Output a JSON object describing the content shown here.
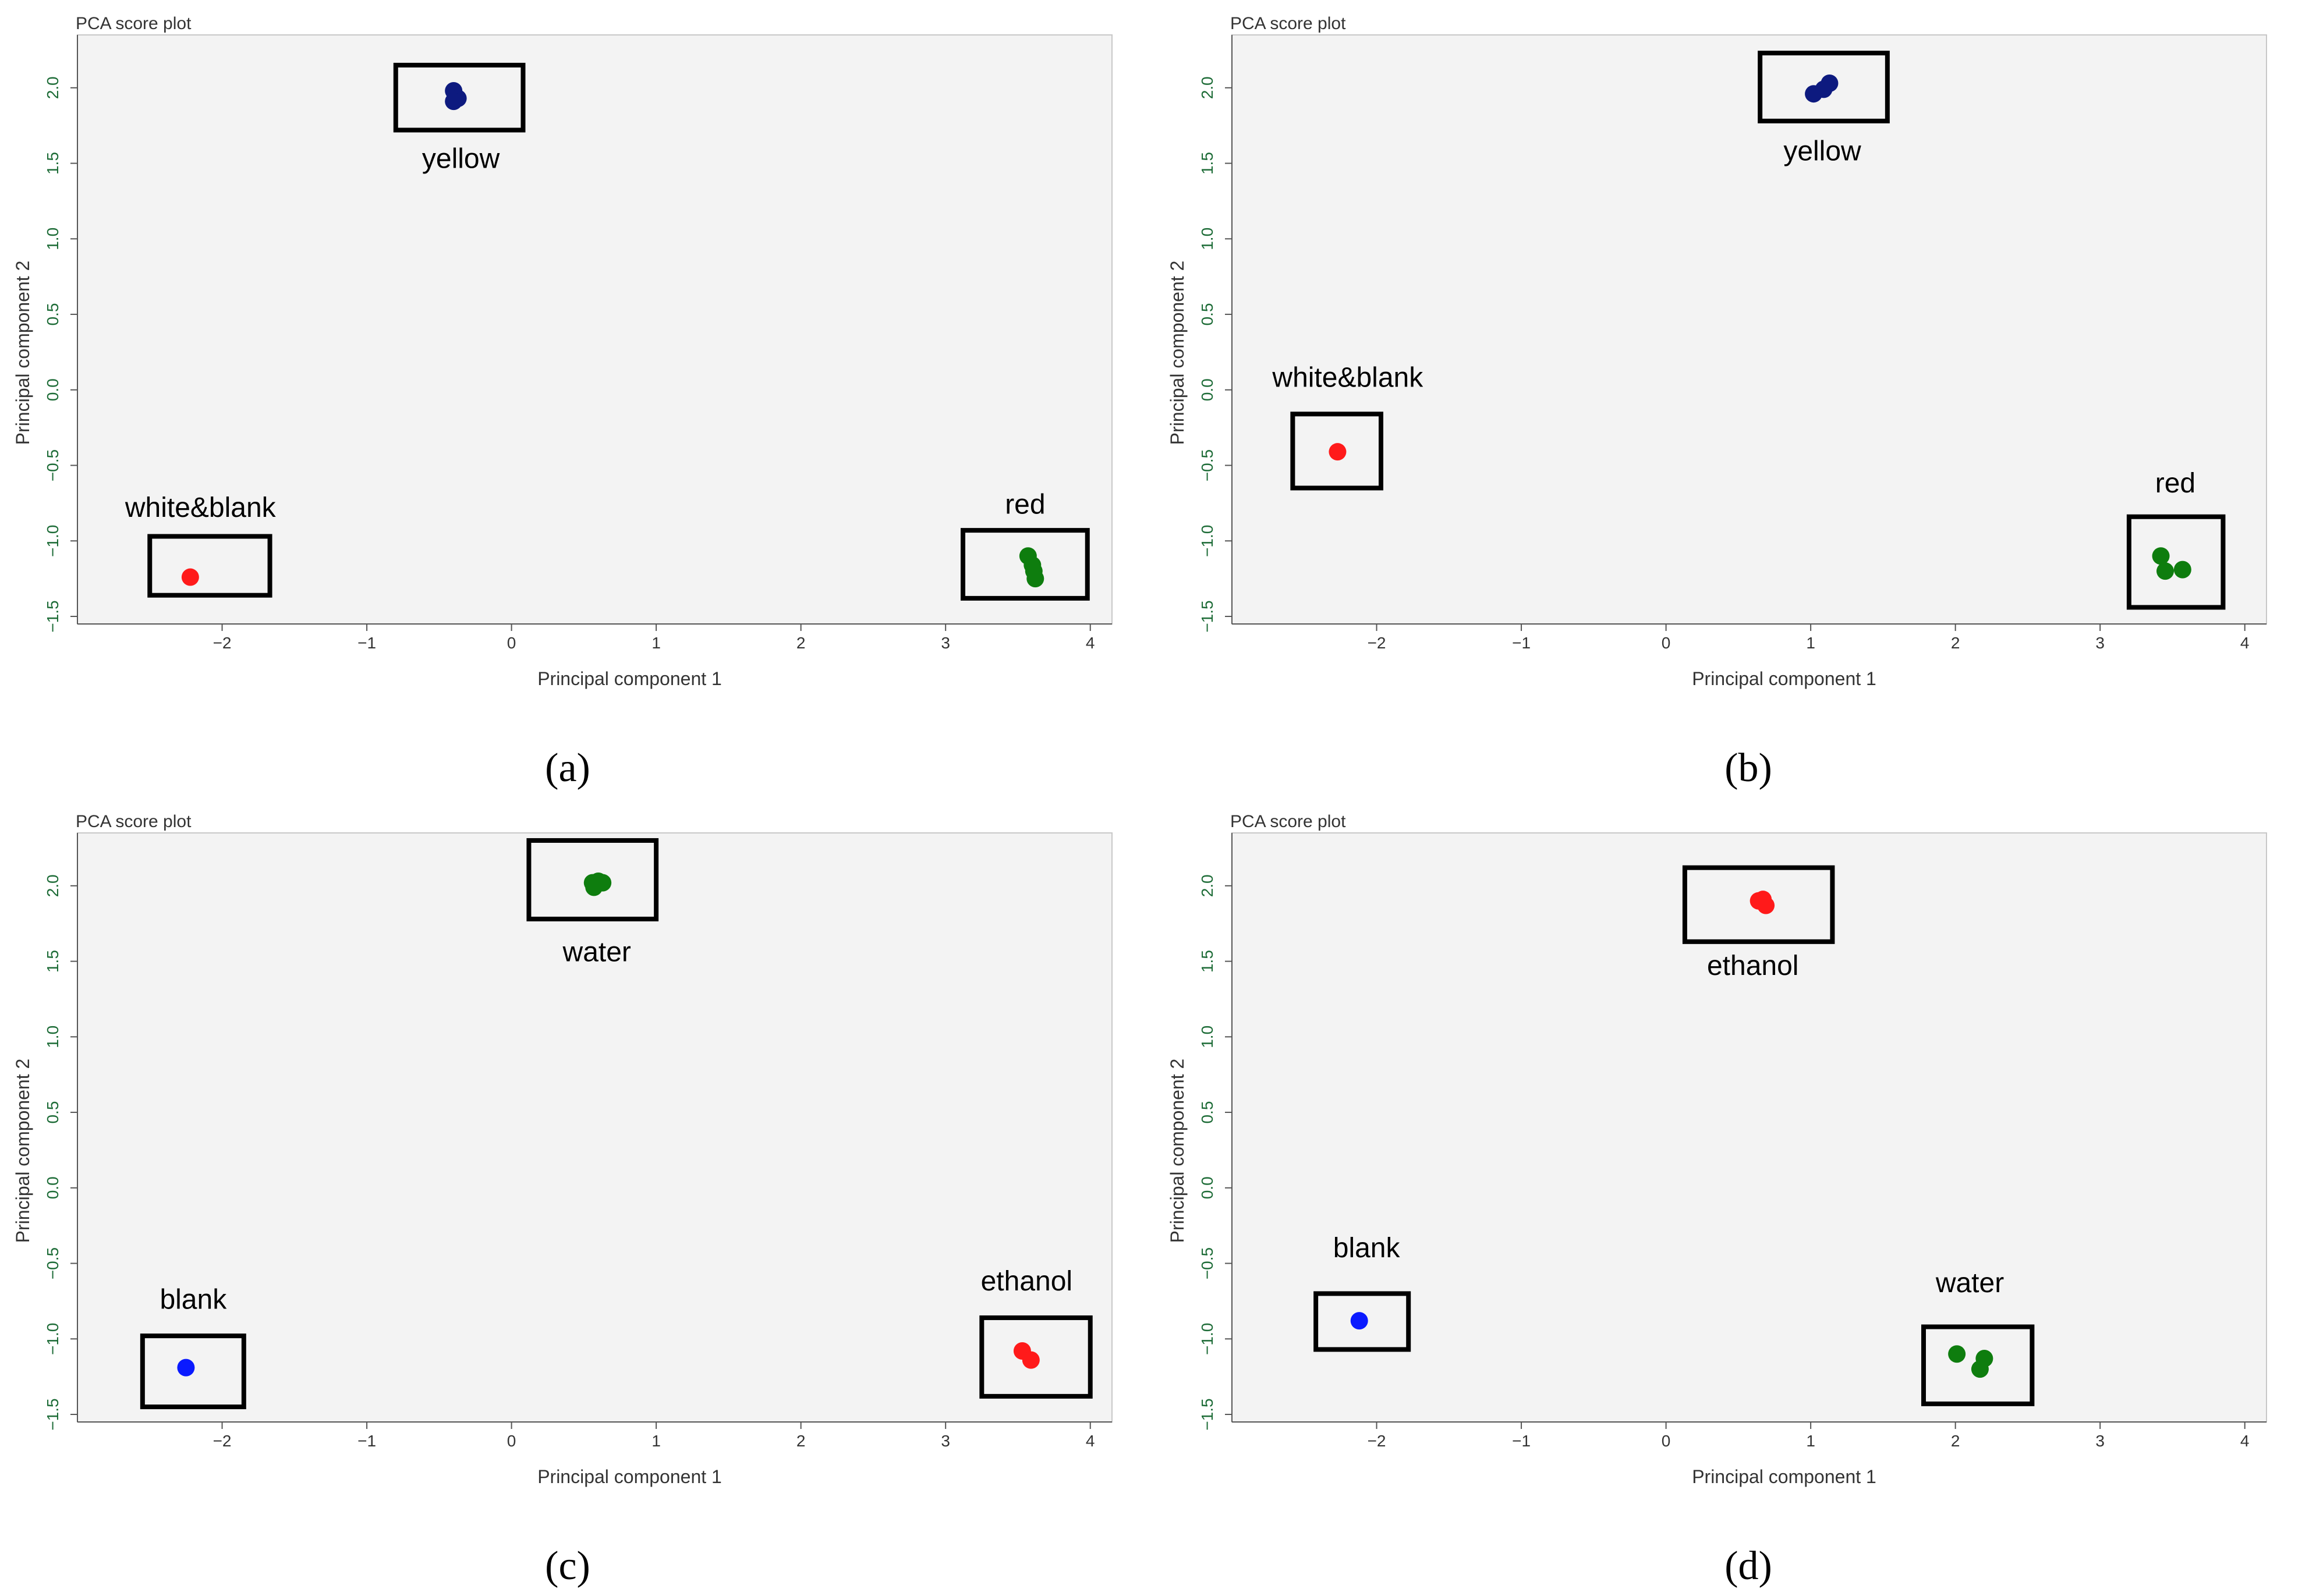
{
  "chart_data": [
    {
      "type": "scatter",
      "panel": "a",
      "caption": "(a)",
      "title": "PCA score plot",
      "xlabel": "Principal component 1",
      "ylabel": "Principal component 2",
      "xlim": [
        -3.0,
        4.15
      ],
      "ylim": [
        -1.55,
        2.35
      ],
      "xticks": [
        -2,
        -1,
        0,
        1,
        2,
        3,
        4
      ],
      "yticks": [
        -1.5,
        -1.0,
        -0.5,
        0.0,
        0.5,
        1.0,
        1.5,
        2.0
      ],
      "xtick_labels": [
        "−2",
        "−1",
        "0",
        "1",
        "2",
        "3",
        "4"
      ],
      "ytick_labels": [
        "−1.5",
        "−1.0",
        "−0.5",
        "0.0",
        "0.5",
        "1.0",
        "1.5",
        "2.0"
      ],
      "series": [
        {
          "name": "yellow",
          "color": "#0d1a7f",
          "box": [
            -0.8,
            1.72,
            0.08,
            2.15
          ],
          "points": [
            {
              "x": -0.4,
              "y": 1.98
            },
            {
              "x": -0.37,
              "y": 1.93
            },
            {
              "x": -0.4,
              "y": 1.91
            }
          ]
        },
        {
          "name": "white&blank",
          "color": "#ff1a1a",
          "box": [
            -2.5,
            -1.36,
            -1.67,
            -0.97
          ],
          "points": [
            {
              "x": -2.22,
              "y": -1.24
            }
          ]
        },
        {
          "name": "red",
          "color": "#0e7d0e",
          "box": [
            3.12,
            -1.38,
            3.98,
            -0.93
          ],
          "points": [
            {
              "x": 3.57,
              "y": -1.1
            },
            {
              "x": 3.6,
              "y": -1.16
            },
            {
              "x": 3.61,
              "y": -1.2
            },
            {
              "x": 3.62,
              "y": -1.25
            }
          ]
        }
      ],
      "labels": [
        {
          "text": "yellow",
          "x": -0.35,
          "y": 1.47
        },
        {
          "text": "white&blank",
          "x": -2.15,
          "y": -0.84
        },
        {
          "text": "red",
          "x": 3.55,
          "y": -0.82
        }
      ]
    },
    {
      "type": "scatter",
      "panel": "b",
      "caption": "(b)",
      "title": "PCA score plot",
      "xlabel": "Principal component 1",
      "ylabel": "Principal component 2",
      "xlim": [
        -3.0,
        4.15
      ],
      "ylim": [
        -1.55,
        2.35
      ],
      "xticks": [
        -2,
        -1,
        0,
        1,
        2,
        3,
        4
      ],
      "yticks": [
        -1.5,
        -1.0,
        -0.5,
        0.0,
        0.5,
        1.0,
        1.5,
        2.0
      ],
      "xtick_labels": [
        "−2",
        "−1",
        "0",
        "1",
        "2",
        "3",
        "4"
      ],
      "ytick_labels": [
        "−1.5",
        "−1.0",
        "−0.5",
        "0.0",
        "0.5",
        "1.0",
        "1.5",
        "2.0"
      ],
      "series": [
        {
          "name": "yellow",
          "color": "#0d1a7f",
          "box": [
            0.65,
            1.78,
            1.53,
            2.23
          ],
          "points": [
            {
              "x": 1.02,
              "y": 1.96
            },
            {
              "x": 1.09,
              "y": 1.99
            },
            {
              "x": 1.13,
              "y": 2.03
            }
          ]
        },
        {
          "name": "white&blank",
          "color": "#ff1a1a",
          "box": [
            -2.58,
            -0.65,
            -1.97,
            -0.16
          ],
          "points": [
            {
              "x": -2.27,
              "y": -0.41
            }
          ]
        },
        {
          "name": "red",
          "color": "#0e7d0e",
          "box": [
            3.2,
            -1.44,
            3.85,
            -0.84
          ],
          "points": [
            {
              "x": 3.42,
              "y": -1.1
            },
            {
              "x": 3.45,
              "y": -1.2
            },
            {
              "x": 3.57,
              "y": -1.19
            }
          ]
        }
      ],
      "labels": [
        {
          "text": "yellow",
          "x": 1.08,
          "y": 1.52
        },
        {
          "text": "white&blank",
          "x": -2.2,
          "y": 0.02
        },
        {
          "text": "red",
          "x": 3.52,
          "y": -0.68
        }
      ]
    },
    {
      "type": "scatter",
      "panel": "c",
      "caption": "(c)",
      "title": "PCA score plot",
      "xlabel": "Principal component 1",
      "ylabel": "Principal component 2",
      "xlim": [
        -3.0,
        4.15
      ],
      "ylim": [
        -1.55,
        2.35
      ],
      "xticks": [
        -2,
        -1,
        0,
        1,
        2,
        3,
        4
      ],
      "yticks": [
        -1.5,
        -1.0,
        -0.5,
        0.0,
        0.5,
        1.0,
        1.5,
        2.0
      ],
      "xtick_labels": [
        "−2",
        "−1",
        "0",
        "1",
        "2",
        "3",
        "4"
      ],
      "ytick_labels": [
        "−1.5",
        "−1.0",
        "−0.5",
        "0.0",
        "0.5",
        "1.0",
        "1.5",
        "2.0"
      ],
      "series": [
        {
          "name": "water",
          "color": "#0e7d0e",
          "box": [
            0.12,
            1.78,
            1.0,
            2.3
          ],
          "points": [
            {
              "x": 0.56,
              "y": 2.02
            },
            {
              "x": 0.6,
              "y": 2.03
            },
            {
              "x": 0.57,
              "y": 1.99
            },
            {
              "x": 0.63,
              "y": 2.02
            }
          ]
        },
        {
          "name": "blank",
          "color": "#0a1aff",
          "box": [
            -2.55,
            -1.45,
            -1.85,
            -0.98
          ],
          "points": [
            {
              "x": -2.25,
              "y": -1.19
            }
          ]
        },
        {
          "name": "ethanol",
          "color": "#ff1a1a",
          "box": [
            3.25,
            -1.38,
            4.0,
            -0.86
          ],
          "points": [
            {
              "x": 3.53,
              "y": -1.08
            },
            {
              "x": 3.59,
              "y": -1.14
            }
          ]
        }
      ],
      "labels": [
        {
          "text": "water",
          "x": 0.59,
          "y": 1.5
        },
        {
          "text": "blank",
          "x": -2.2,
          "y": -0.8
        },
        {
          "text": "ethanol",
          "x": 3.56,
          "y": -0.68
        }
      ]
    },
    {
      "type": "scatter",
      "panel": "d",
      "caption": "(d)",
      "title": "PCA score plot",
      "xlabel": "Principal component 1",
      "ylabel": "Principal component 2",
      "xlim": [
        -3.0,
        4.15
      ],
      "ylim": [
        -1.55,
        2.35
      ],
      "xticks": [
        -2,
        -1,
        0,
        1,
        2,
        3,
        4
      ],
      "yticks": [
        -1.5,
        -1.0,
        -0.5,
        0.0,
        0.5,
        1.0,
        1.5,
        2.0
      ],
      "xtick_labels": [
        "−2",
        "−1",
        "0",
        "1",
        "2",
        "3",
        "4"
      ],
      "ytick_labels": [
        "−1.5",
        "−1.0",
        "−0.5",
        "0.0",
        "0.5",
        "1.0",
        "1.5",
        "2.0"
      ],
      "series": [
        {
          "name": "ethanol",
          "color": "#ff1a1a",
          "box": [
            0.13,
            1.63,
            1.15,
            2.12
          ],
          "points": [
            {
              "x": 0.64,
              "y": 1.9
            },
            {
              "x": 0.67,
              "y": 1.91
            },
            {
              "x": 0.69,
              "y": 1.87
            }
          ]
        },
        {
          "name": "blank",
          "color": "#0a1aff",
          "box": [
            -2.42,
            -1.07,
            -1.78,
            -0.7
          ],
          "points": [
            {
              "x": -2.12,
              "y": -0.88
            }
          ]
        },
        {
          "name": "water",
          "color": "#0e7d0e",
          "box": [
            1.78,
            -1.43,
            2.53,
            -0.92
          ],
          "points": [
            {
              "x": 2.01,
              "y": -1.1
            },
            {
              "x": 2.2,
              "y": -1.13
            },
            {
              "x": 2.17,
              "y": -1.2
            }
          ]
        }
      ],
      "labels": [
        {
          "text": "ethanol",
          "x": 0.6,
          "y": 1.41
        },
        {
          "text": "blank",
          "x": -2.07,
          "y": -0.46
        },
        {
          "text": "water",
          "x": 2.1,
          "y": -0.69
        }
      ]
    }
  ]
}
